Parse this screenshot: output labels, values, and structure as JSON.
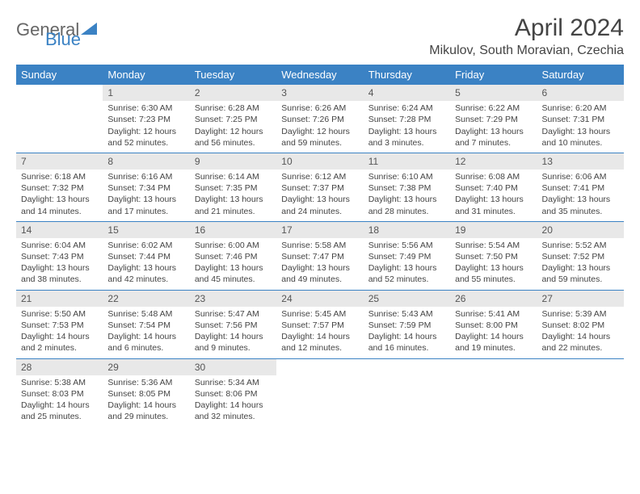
{
  "logo": {
    "text_general": "General",
    "text_blue": "Blue"
  },
  "header": {
    "title": "April 2024",
    "location": "Mikulov, South Moravian, Czechia"
  },
  "colors": {
    "accent": "#3b82c4",
    "header_bg": "#e8e8e8",
    "text": "#444444",
    "background": "#ffffff"
  },
  "days_of_week": [
    "Sunday",
    "Monday",
    "Tuesday",
    "Wednesday",
    "Thursday",
    "Friday",
    "Saturday"
  ],
  "calendar": {
    "type": "table",
    "columns": 7,
    "rows": 5,
    "cell_font_size_pt": 8,
    "daynum_bg": "#e8e8e8",
    "row_border_color": "#3b82c4"
  },
  "weeks": [
    [
      {
        "n": "",
        "empty": true
      },
      {
        "n": "1",
        "sr": "Sunrise: 6:30 AM",
        "ss": "Sunset: 7:23 PM",
        "d1": "Daylight: 12 hours",
        "d2": "and 52 minutes."
      },
      {
        "n": "2",
        "sr": "Sunrise: 6:28 AM",
        "ss": "Sunset: 7:25 PM",
        "d1": "Daylight: 12 hours",
        "d2": "and 56 minutes."
      },
      {
        "n": "3",
        "sr": "Sunrise: 6:26 AM",
        "ss": "Sunset: 7:26 PM",
        "d1": "Daylight: 12 hours",
        "d2": "and 59 minutes."
      },
      {
        "n": "4",
        "sr": "Sunrise: 6:24 AM",
        "ss": "Sunset: 7:28 PM",
        "d1": "Daylight: 13 hours",
        "d2": "and 3 minutes."
      },
      {
        "n": "5",
        "sr": "Sunrise: 6:22 AM",
        "ss": "Sunset: 7:29 PM",
        "d1": "Daylight: 13 hours",
        "d2": "and 7 minutes."
      },
      {
        "n": "6",
        "sr": "Sunrise: 6:20 AM",
        "ss": "Sunset: 7:31 PM",
        "d1": "Daylight: 13 hours",
        "d2": "and 10 minutes."
      }
    ],
    [
      {
        "n": "7",
        "sr": "Sunrise: 6:18 AM",
        "ss": "Sunset: 7:32 PM",
        "d1": "Daylight: 13 hours",
        "d2": "and 14 minutes."
      },
      {
        "n": "8",
        "sr": "Sunrise: 6:16 AM",
        "ss": "Sunset: 7:34 PM",
        "d1": "Daylight: 13 hours",
        "d2": "and 17 minutes."
      },
      {
        "n": "9",
        "sr": "Sunrise: 6:14 AM",
        "ss": "Sunset: 7:35 PM",
        "d1": "Daylight: 13 hours",
        "d2": "and 21 minutes."
      },
      {
        "n": "10",
        "sr": "Sunrise: 6:12 AM",
        "ss": "Sunset: 7:37 PM",
        "d1": "Daylight: 13 hours",
        "d2": "and 24 minutes."
      },
      {
        "n": "11",
        "sr": "Sunrise: 6:10 AM",
        "ss": "Sunset: 7:38 PM",
        "d1": "Daylight: 13 hours",
        "d2": "and 28 minutes."
      },
      {
        "n": "12",
        "sr": "Sunrise: 6:08 AM",
        "ss": "Sunset: 7:40 PM",
        "d1": "Daylight: 13 hours",
        "d2": "and 31 minutes."
      },
      {
        "n": "13",
        "sr": "Sunrise: 6:06 AM",
        "ss": "Sunset: 7:41 PM",
        "d1": "Daylight: 13 hours",
        "d2": "and 35 minutes."
      }
    ],
    [
      {
        "n": "14",
        "sr": "Sunrise: 6:04 AM",
        "ss": "Sunset: 7:43 PM",
        "d1": "Daylight: 13 hours",
        "d2": "and 38 minutes."
      },
      {
        "n": "15",
        "sr": "Sunrise: 6:02 AM",
        "ss": "Sunset: 7:44 PM",
        "d1": "Daylight: 13 hours",
        "d2": "and 42 minutes."
      },
      {
        "n": "16",
        "sr": "Sunrise: 6:00 AM",
        "ss": "Sunset: 7:46 PM",
        "d1": "Daylight: 13 hours",
        "d2": "and 45 minutes."
      },
      {
        "n": "17",
        "sr": "Sunrise: 5:58 AM",
        "ss": "Sunset: 7:47 PM",
        "d1": "Daylight: 13 hours",
        "d2": "and 49 minutes."
      },
      {
        "n": "18",
        "sr": "Sunrise: 5:56 AM",
        "ss": "Sunset: 7:49 PM",
        "d1": "Daylight: 13 hours",
        "d2": "and 52 minutes."
      },
      {
        "n": "19",
        "sr": "Sunrise: 5:54 AM",
        "ss": "Sunset: 7:50 PM",
        "d1": "Daylight: 13 hours",
        "d2": "and 55 minutes."
      },
      {
        "n": "20",
        "sr": "Sunrise: 5:52 AM",
        "ss": "Sunset: 7:52 PM",
        "d1": "Daylight: 13 hours",
        "d2": "and 59 minutes."
      }
    ],
    [
      {
        "n": "21",
        "sr": "Sunrise: 5:50 AM",
        "ss": "Sunset: 7:53 PM",
        "d1": "Daylight: 14 hours",
        "d2": "and 2 minutes."
      },
      {
        "n": "22",
        "sr": "Sunrise: 5:48 AM",
        "ss": "Sunset: 7:54 PM",
        "d1": "Daylight: 14 hours",
        "d2": "and 6 minutes."
      },
      {
        "n": "23",
        "sr": "Sunrise: 5:47 AM",
        "ss": "Sunset: 7:56 PM",
        "d1": "Daylight: 14 hours",
        "d2": "and 9 minutes."
      },
      {
        "n": "24",
        "sr": "Sunrise: 5:45 AM",
        "ss": "Sunset: 7:57 PM",
        "d1": "Daylight: 14 hours",
        "d2": "and 12 minutes."
      },
      {
        "n": "25",
        "sr": "Sunrise: 5:43 AM",
        "ss": "Sunset: 7:59 PM",
        "d1": "Daylight: 14 hours",
        "d2": "and 16 minutes."
      },
      {
        "n": "26",
        "sr": "Sunrise: 5:41 AM",
        "ss": "Sunset: 8:00 PM",
        "d1": "Daylight: 14 hours",
        "d2": "and 19 minutes."
      },
      {
        "n": "27",
        "sr": "Sunrise: 5:39 AM",
        "ss": "Sunset: 8:02 PM",
        "d1": "Daylight: 14 hours",
        "d2": "and 22 minutes."
      }
    ],
    [
      {
        "n": "28",
        "sr": "Sunrise: 5:38 AM",
        "ss": "Sunset: 8:03 PM",
        "d1": "Daylight: 14 hours",
        "d2": "and 25 minutes."
      },
      {
        "n": "29",
        "sr": "Sunrise: 5:36 AM",
        "ss": "Sunset: 8:05 PM",
        "d1": "Daylight: 14 hours",
        "d2": "and 29 minutes."
      },
      {
        "n": "30",
        "sr": "Sunrise: 5:34 AM",
        "ss": "Sunset: 8:06 PM",
        "d1": "Daylight: 14 hours",
        "d2": "and 32 minutes."
      },
      {
        "n": "",
        "empty": true
      },
      {
        "n": "",
        "empty": true
      },
      {
        "n": "",
        "empty": true
      },
      {
        "n": "",
        "empty": true
      }
    ]
  ]
}
